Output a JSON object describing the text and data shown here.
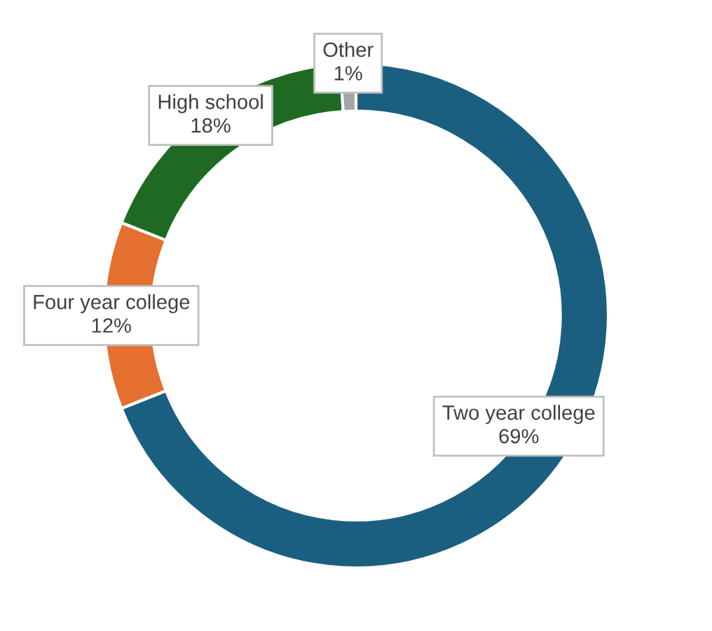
{
  "chart_data": {
    "type": "donut",
    "categories": [
      "Two year college",
      "Four year college",
      "High school",
      "Other"
    ],
    "values": [
      69,
      12,
      18,
      1
    ],
    "colors": [
      "#1b5f80",
      "#e56f2f",
      "#1e6a22",
      "#a5a5a5"
    ],
    "value_labels": [
      "69%",
      "12%",
      "18%",
      "1%"
    ],
    "legend": false
  }
}
